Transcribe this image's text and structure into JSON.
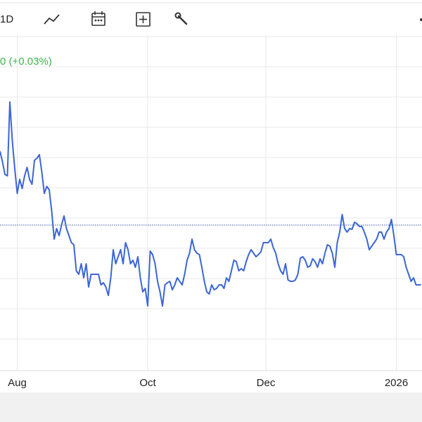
{
  "toolbar": {
    "interval": "1D"
  },
  "quote_change": "0 (+0.03%)",
  "chart_data": {
    "type": "line",
    "color": "#3a66d6",
    "values": [
      312,
      297,
      279,
      277,
      382,
      327,
      287,
      252,
      272,
      259,
      277,
      289,
      272,
      265,
      299,
      302,
      307,
      282,
      252,
      262,
      257,
      227,
      187,
      202,
      192,
      207,
      220,
      202,
      192,
      182,
      179,
      142,
      137,
      152,
      132,
      152,
      119,
      137,
      137,
      137,
      137,
      122,
      125,
      119,
      107,
      132,
      172,
      152,
      162,
      172,
      152,
      182,
      172,
      152,
      157,
      147,
      162,
      132,
      112,
      117,
      92,
      170,
      165,
      152,
      127,
      112,
      92,
      122,
      125,
      127,
      115,
      122,
      132,
      127,
      122,
      137,
      157,
      167,
      187,
      172,
      167,
      165,
      147,
      127,
      112,
      109,
      122,
      115,
      117,
      122,
      122,
      117,
      132,
      127,
      142,
      157,
      155,
      142,
      145,
      142,
      155,
      165,
      172,
      167,
      162,
      165,
      169,
      182,
      182,
      182,
      187,
      175,
      167,
      152,
      142,
      137,
      152,
      129,
      127,
      127,
      129,
      137,
      160,
      162,
      157,
      147,
      149,
      159,
      155,
      147,
      159,
      152,
      167,
      179,
      177,
      167,
      147,
      182,
      197,
      222,
      202,
      197,
      202,
      201,
      211,
      209,
      205,
      205,
      197,
      187,
      172,
      177,
      182,
      187,
      197,
      197,
      187,
      197,
      202,
      215,
      192,
      165,
      165,
      165,
      162,
      147,
      137,
      127,
      132,
      122,
      122,
      122
    ],
    "xlim": [
      0,
      171
    ],
    "xticks": [
      {
        "value": 7,
        "label": "Aug"
      },
      {
        "value": 60,
        "label": "Oct"
      },
      {
        "value": 108,
        "label": "Dec"
      },
      {
        "value": 161,
        "label": "2026"
      }
    ],
    "ylim": [
      0,
      477
    ],
    "yticks": [
      45,
      88,
      131,
      174,
      217,
      260,
      303,
      346,
      389,
      432,
      475
    ],
    "reference": 207,
    "grid": true
  }
}
